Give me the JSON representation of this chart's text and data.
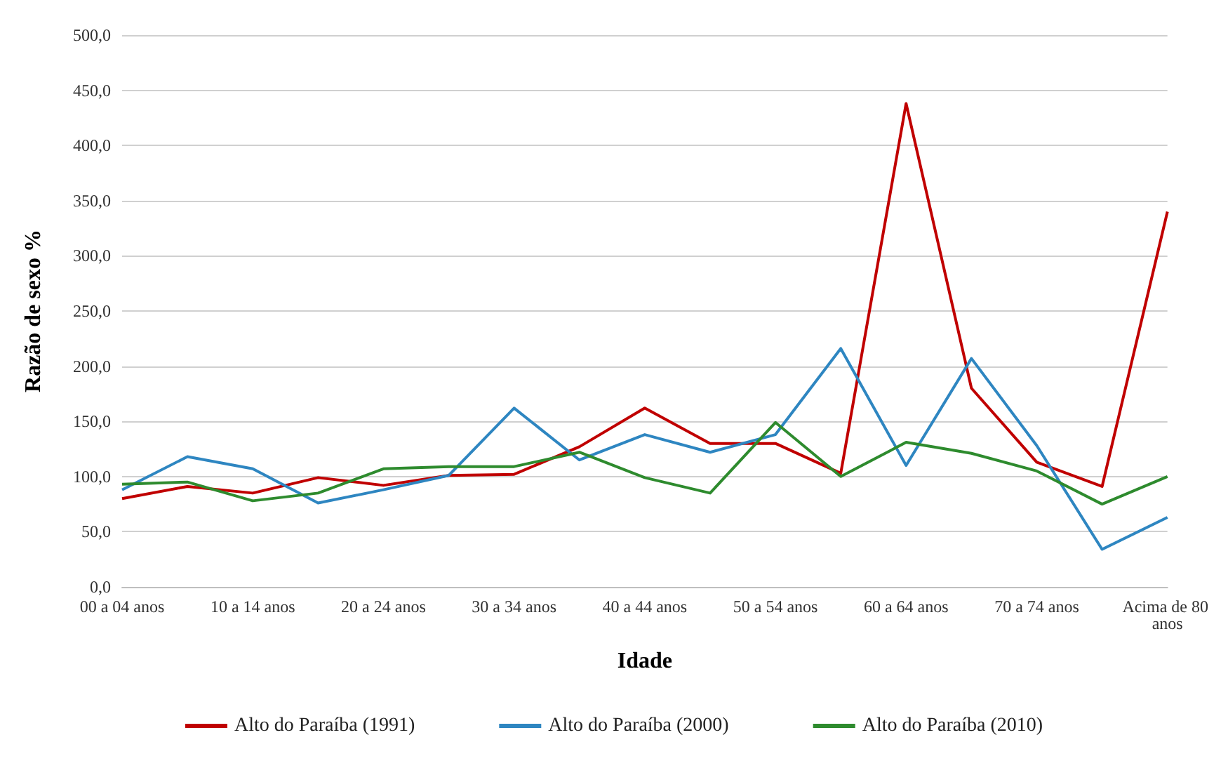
{
  "chart_data": {
    "type": "line",
    "xlabel": "Idade",
    "ylabel": "Razão de sexo %",
    "categories": [
      "00 a 04 anos",
      null,
      "10 a 14 anos",
      null,
      "20 a 24 anos",
      null,
      "30 a 34 anos",
      null,
      "40 a 44 anos",
      null,
      "50 a 54 anos",
      null,
      "60 a 64 anos",
      null,
      "70 a 74 anos",
      null,
      "Acima de 80 anos"
    ],
    "series": [
      {
        "name": "Alto do Paraíba (1991)",
        "color": "#c00000",
        "values": [
          80,
          91,
          85,
          99,
          92,
          101,
          102,
          127,
          162,
          130,
          130,
          103,
          438,
          180,
          113,
          91,
          340
        ]
      },
      {
        "name": "Alto do Paraíba (2000)",
        "color": "#2e86c1",
        "values": [
          88,
          118,
          107,
          76,
          88,
          101,
          162,
          115,
          138,
          122,
          138,
          216,
          110,
          207,
          128,
          34,
          63
        ]
      },
      {
        "name": "Alto do Paraíba (2010)",
        "color": "#2e8b2e",
        "values": [
          93,
          95,
          78,
          85,
          107,
          109,
          109,
          122,
          99,
          85,
          149,
          100,
          131,
          121,
          105,
          75,
          100
        ]
      }
    ],
    "ylim": [
      0,
      500
    ],
    "yticks": [
      {
        "value": 0,
        "label": "0,0"
      },
      {
        "value": 50,
        "label": "50,0"
      },
      {
        "value": 100,
        "label": "100,0"
      },
      {
        "value": 150,
        "label": "150,0"
      },
      {
        "value": 200,
        "label": "200,0"
      },
      {
        "value": 250,
        "label": "250,0"
      },
      {
        "value": 300,
        "label": "300,0"
      },
      {
        "value": 350,
        "label": "350,0"
      },
      {
        "value": 400,
        "label": "400,0"
      },
      {
        "value": 450,
        "label": "450,0"
      },
      {
        "value": 500,
        "label": "500,0"
      }
    ],
    "grid": "y",
    "legend": "bottom",
    "marker": "none",
    "line_style": "solid"
  }
}
